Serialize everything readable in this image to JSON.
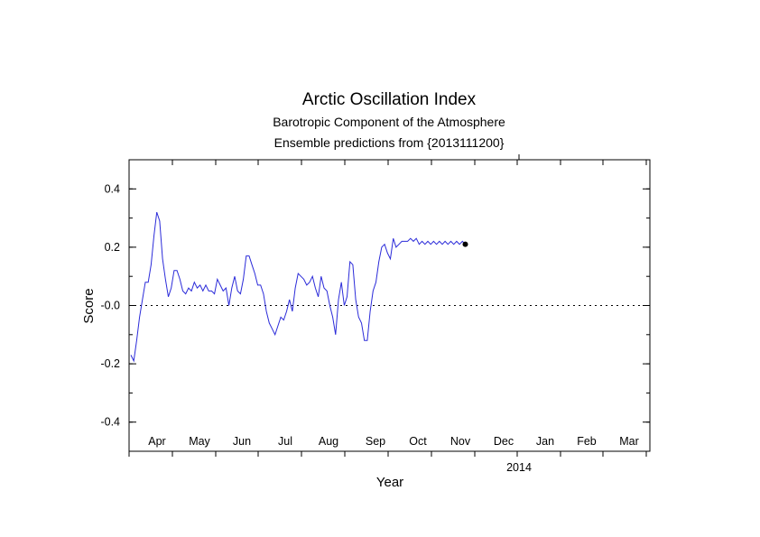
{
  "chart_data": {
    "type": "line",
    "title": "Arctic Oscillation Index",
    "subtitle_1": "Barotropic Component of the Atmosphere",
    "subtitle_2": "Ensemble predictions from {2013111200}",
    "xlabel": "Year",
    "ylabel": "Score",
    "ylim": [
      -0.5,
      0.5
    ],
    "yticks": [
      -0.4,
      -0.2,
      0.0,
      0.2,
      0.4
    ],
    "ytick_labels": [
      "-0.4",
      "-0.2",
      "-0.0",
      "0.2",
      "0.4"
    ],
    "month_labels": [
      "Apr",
      "May",
      "Jun",
      "Jul",
      "Aug",
      "Sep",
      "Oct",
      "Nov",
      "Dec",
      "Jan",
      "Feb",
      "Mar"
    ],
    "year_label": "2014",
    "grid": false,
    "zero_line": "dotted",
    "observed": {
      "color": "#2b2bd9",
      "x": [
        0,
        2,
        4,
        6,
        8,
        10,
        12,
        14,
        16,
        18,
        20,
        22,
        24,
        26,
        28,
        30,
        32,
        34,
        36,
        38,
        40,
        42,
        44,
        46,
        48,
        50,
        52,
        54,
        56,
        58,
        60,
        62,
        64,
        66,
        68,
        70,
        72,
        74,
        76,
        78,
        80,
        82,
        84,
        86,
        88,
        90,
        92,
        94,
        96,
        98,
        100,
        102,
        104,
        106,
        108,
        110,
        112,
        114,
        116,
        118,
        120,
        122,
        124,
        126,
        128,
        130,
        132,
        134,
        136,
        138,
        140,
        142,
        144,
        146,
        148,
        150,
        152,
        154,
        156,
        158,
        160,
        162,
        164,
        166,
        168,
        170,
        172,
        174,
        176,
        178,
        180,
        182,
        184,
        186,
        188,
        190,
        192,
        194,
        196,
        198,
        200,
        202,
        204,
        206,
        208,
        210,
        212,
        214,
        216,
        218,
        220,
        222,
        224,
        226,
        228,
        230,
        232
      ],
      "y": [
        -0.17,
        -0.19,
        -0.12,
        -0.04,
        0.02,
        0.08,
        0.08,
        0.14,
        0.24,
        0.32,
        0.29,
        0.16,
        0.09,
        0.03,
        0.06,
        0.12,
        0.12,
        0.09,
        0.05,
        0.04,
        0.06,
        0.05,
        0.08,
        0.06,
        0.07,
        0.05,
        0.07,
        0.05,
        0.05,
        0.04,
        0.09,
        0.07,
        0.05,
        0.06,
        0.0,
        0.06,
        0.1,
        0.05,
        0.04,
        0.09,
        0.17,
        0.17,
        0.14,
        0.11,
        0.07,
        0.07,
        0.04,
        -0.02,
        -0.06,
        -0.08,
        -0.1,
        -0.07,
        -0.04,
        -0.05,
        -0.02,
        0.02,
        -0.02,
        0.06,
        0.11,
        0.1,
        0.09,
        0.07,
        0.08,
        0.1,
        0.06,
        0.03,
        0.1,
        0.06,
        0.05,
        0.0,
        -0.04,
        -0.1,
        0.02,
        0.08,
        0.0,
        0.03,
        0.15,
        0.14,
        0.02,
        -0.04,
        -0.06,
        -0.12,
        -0.12,
        -0.02,
        0.05,
        0.08,
        0.15,
        0.2,
        0.21,
        0.18,
        0.16,
        0.23,
        0.2,
        0.21,
        0.22,
        0.22,
        0.22,
        0.23,
        0.22,
        0.23,
        0.21,
        0.22,
        0.21,
        0.22,
        0.21,
        0.22,
        0.21,
        0.22,
        0.21,
        0.22,
        0.21,
        0.22,
        0.21,
        0.22,
        0.21,
        0.22,
        0.21
      ]
    }
  }
}
